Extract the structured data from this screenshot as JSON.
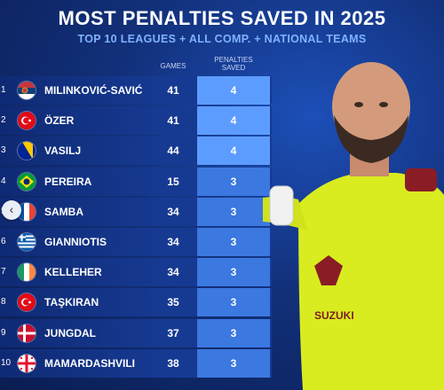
{
  "header": {
    "title": "MOST PENALTIES SAVED IN 2025",
    "subtitle": "TOP 10 LEAGUES + ALL COMP. + NATIONAL TEAMS"
  },
  "columns": {
    "games": "GAMES",
    "saved_line1": "PENALTIES",
    "saved_line2": "SAVED"
  },
  "rows": [
    {
      "rank": "1",
      "flag": "serbia",
      "name": "MILINKOVIĆ-SAVIĆ",
      "games": "41",
      "saved": "4"
    },
    {
      "rank": "2",
      "flag": "turkey",
      "name": "ÖZER",
      "games": "41",
      "saved": "4"
    },
    {
      "rank": "3",
      "flag": "bosnia",
      "name": "VASILJ",
      "games": "44",
      "saved": "4"
    },
    {
      "rank": "4",
      "flag": "brazil",
      "name": "PEREIRA",
      "games": "15",
      "saved": "3"
    },
    {
      "rank": "5",
      "flag": "france",
      "name": "SAMBA",
      "games": "34",
      "saved": "3"
    },
    {
      "rank": "6",
      "flag": "greece",
      "name": "GIANNIOTIS",
      "games": "34",
      "saved": "3"
    },
    {
      "rank": "7",
      "flag": "ireland",
      "name": "KELLEHER",
      "games": "34",
      "saved": "3"
    },
    {
      "rank": "8",
      "flag": "turkey",
      "name": "TAŞKIRAN",
      "games": "35",
      "saved": "3"
    },
    {
      "rank": "9",
      "flag": "denmark",
      "name": "JUNGDAL",
      "games": "37",
      "saved": "3"
    },
    {
      "rank": "10",
      "flag": "georgia",
      "name": "MAMARDASHVILI",
      "games": "38",
      "saved": "3"
    }
  ],
  "player_shirt": {
    "brand": "SUZUKI"
  },
  "nav": {
    "back_icon": "chevron-left-icon"
  },
  "colors": {
    "background": "#12307a",
    "saved_top": "#5d9cff",
    "saved": "#3b78e0",
    "jersey": "#d9ec1f"
  }
}
